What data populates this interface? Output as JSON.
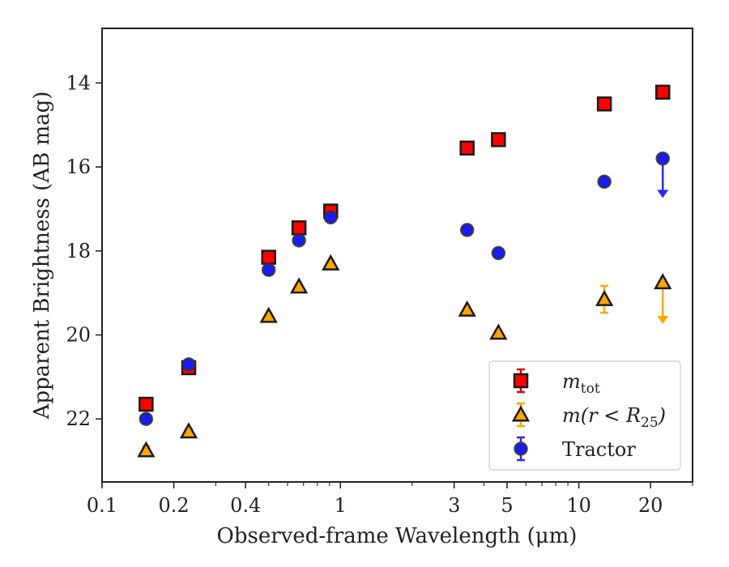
{
  "chart_data": {
    "type": "scatter",
    "xlabel": "Observed-frame Wavelength (μm)",
    "ylabel": "Apparent Brightness (AB mag)",
    "x_scale": "log",
    "xlim": [
      0.1,
      30
    ],
    "ylim": [
      23.5,
      12.7
    ],
    "y_inverted": true,
    "x_ticks": [
      {
        "value": 0.1,
        "label": "0.1"
      },
      {
        "value": 0.2,
        "label": "0.2"
      },
      {
        "value": 0.4,
        "label": "0.4"
      },
      {
        "value": 1,
        "label": "1"
      },
      {
        "value": 3,
        "label": "3"
      },
      {
        "value": 5,
        "label": "5"
      },
      {
        "value": 10,
        "label": "10"
      },
      {
        "value": 20,
        "label": "20"
      }
    ],
    "y_ticks": [
      {
        "value": 14,
        "label": "14"
      },
      {
        "value": 16,
        "label": "16"
      },
      {
        "value": 18,
        "label": "18"
      },
      {
        "value": 20,
        "label": "20"
      },
      {
        "value": 22,
        "label": "22"
      }
    ],
    "grid": false,
    "legend_position": "lower-right",
    "series": [
      {
        "name": "m_tot",
        "legend_main": "m",
        "legend_sub": "tot",
        "marker": "square",
        "color": "#ff0000",
        "edge": "#1a1a1a",
        "error_color": "#e00000",
        "points": [
          {
            "x": 0.153,
            "y": 21.65,
            "err": 0.06
          },
          {
            "x": 0.231,
            "y": 20.78,
            "err": 0.06
          },
          {
            "x": 0.5,
            "y": 18.15,
            "err": 0.05
          },
          {
            "x": 0.67,
            "y": 17.45,
            "err": 0.05
          },
          {
            "x": 0.91,
            "y": 17.05,
            "err": 0.05
          },
          {
            "x": 3.4,
            "y": 15.55,
            "err": 0.04
          },
          {
            "x": 4.6,
            "y": 15.35,
            "err": 0.04
          },
          {
            "x": 12.8,
            "y": 14.5,
            "err": 0.04
          },
          {
            "x": 22.5,
            "y": 14.22,
            "err": 0.04
          }
        ]
      },
      {
        "name": "m(r < R25)",
        "legend_main": "m(r < R",
        "legend_sub": "25",
        "legend_tail": ")",
        "marker": "triangle",
        "color": "#ffa500",
        "edge": "#1a1a1a",
        "error_color": "#ffa500",
        "points": [
          {
            "x": 0.153,
            "y": 22.75,
            "err": 0.1
          },
          {
            "x": 0.231,
            "y": 22.3,
            "err": 0.06
          },
          {
            "x": 0.5,
            "y": 19.55,
            "err": 0.05
          },
          {
            "x": 0.67,
            "y": 18.85,
            "err": 0.05
          },
          {
            "x": 0.91,
            "y": 18.3,
            "err": 0.05
          },
          {
            "x": 3.4,
            "y": 19.4,
            "err": 0.05
          },
          {
            "x": 4.6,
            "y": 19.95,
            "err": 0.05
          },
          {
            "x": 12.8,
            "y": 19.15,
            "err": 0.32
          },
          {
            "x": 22.5,
            "y": 18.75,
            "upper_limit": true,
            "arrow_to": 19.7
          }
        ]
      },
      {
        "name": "Tractor",
        "legend_main": "Tractor",
        "marker": "circle",
        "color": "#1a1aff",
        "edge": "#333333",
        "error_color": "#2a2af0",
        "points": [
          {
            "x": 0.153,
            "y": 22.0,
            "err": 0.06
          },
          {
            "x": 0.231,
            "y": 20.7,
            "err": 0.06
          },
          {
            "x": 0.5,
            "y": 18.45,
            "err": 0.05
          },
          {
            "x": 0.67,
            "y": 17.75,
            "err": 0.05
          },
          {
            "x": 0.91,
            "y": 17.2,
            "err": 0.05
          },
          {
            "x": 3.4,
            "y": 17.5,
            "err": 0.05
          },
          {
            "x": 4.6,
            "y": 18.05,
            "err": 0.05
          },
          {
            "x": 12.8,
            "y": 16.35,
            "err": 0.05
          },
          {
            "x": 22.5,
            "y": 15.8,
            "upper_limit": true,
            "arrow_to": 16.7
          }
        ]
      }
    ]
  }
}
